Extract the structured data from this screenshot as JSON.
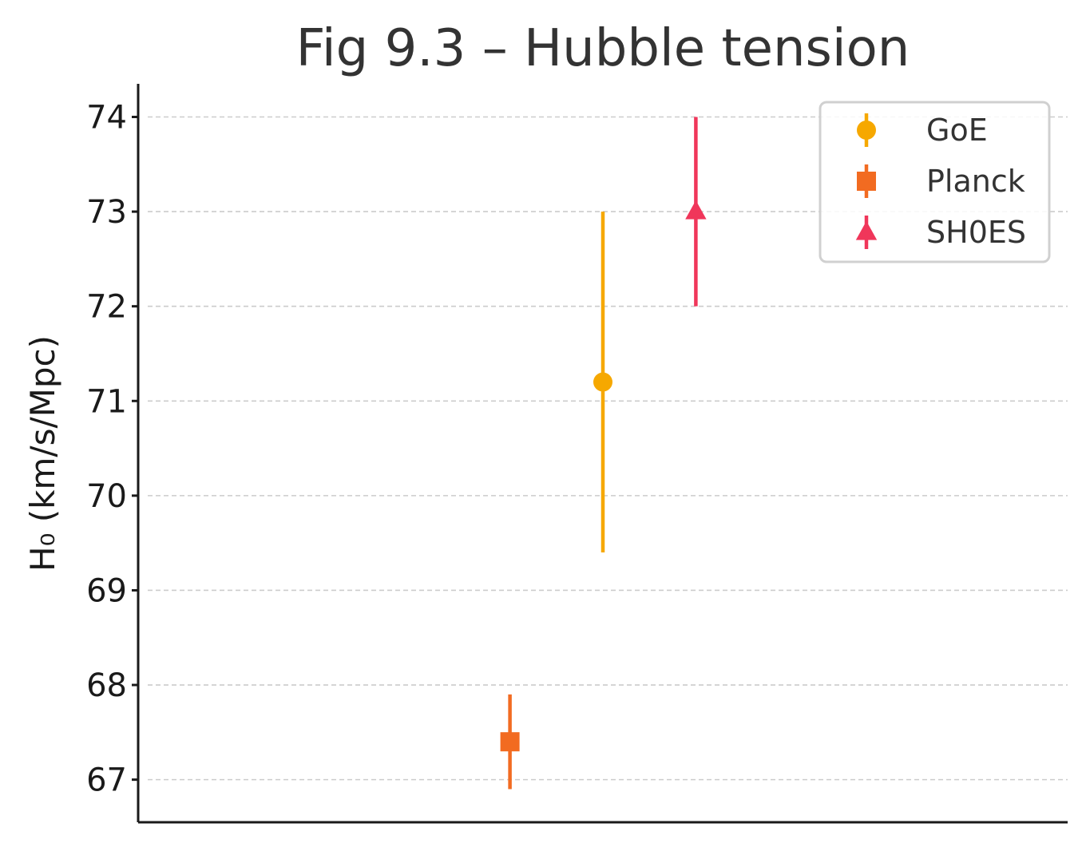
{
  "chart_data": {
    "type": "scatter",
    "title": "Fig 9.3 – Hubble tension",
    "xlabel": "",
    "ylabel": "H₀ (km/s/Mpc)",
    "ylim": [
      66.55,
      74.35
    ],
    "yticks": [
      67,
      68,
      69,
      70,
      71,
      72,
      73,
      74
    ],
    "ytick_labels": [
      "67",
      "68",
      "69",
      "70",
      "71",
      "72",
      "73",
      "74"
    ],
    "grid": "y dashed",
    "legend_position": "top-right",
    "x_categories_visible": false,
    "series": [
      {
        "name": "GoE",
        "x": 1,
        "y": 71.2,
        "yerr": 1.8,
        "marker": "circle",
        "color": "#F6A800"
      },
      {
        "name": "Planck",
        "x": 0,
        "y": 67.4,
        "yerr": 0.5,
        "marker": "square",
        "color": "#F26B21"
      },
      {
        "name": "SH0ES",
        "x": 2,
        "y": 73.0,
        "yerr": 1.0,
        "marker": "triangle",
        "color": "#F0365A"
      }
    ],
    "xlim": [
      -4,
      6
    ]
  }
}
